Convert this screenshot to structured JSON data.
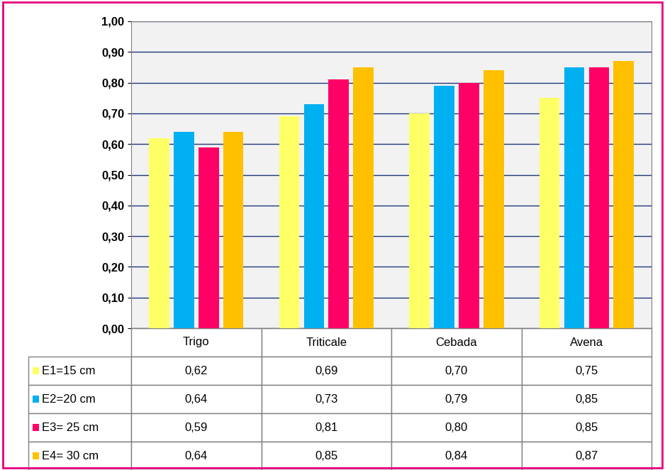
{
  "chart_data": {
    "type": "bar",
    "categories": [
      "Trigo",
      "Triticale",
      "Cebada",
      "Avena"
    ],
    "series": [
      {
        "name": "E1=15 cm",
        "color": "#FFFF66",
        "values": [
          0.62,
          0.69,
          0.7,
          0.75
        ],
        "value_labels": [
          "0,62",
          "0,69",
          "0,70",
          "0,75"
        ]
      },
      {
        "name": "E2=20 cm",
        "color": "#00B0F0",
        "values": [
          0.64,
          0.73,
          0.79,
          0.85
        ],
        "value_labels": [
          "0,64",
          "0,73",
          "0,79",
          "0,85"
        ]
      },
      {
        "name": "E3= 25 cm",
        "color": "#FF0066",
        "values": [
          0.59,
          0.81,
          0.8,
          0.85
        ],
        "value_labels": [
          "0,59",
          "0,81",
          "0,80",
          "0,85"
        ]
      },
      {
        "name": "E4= 30 cm",
        "color": "#FFC000",
        "values": [
          0.64,
          0.85,
          0.84,
          0.87
        ],
        "value_labels": [
          "0,64",
          "0,85",
          "0,84",
          "0,87"
        ]
      }
    ],
    "ylim": [
      0,
      1.0
    ],
    "yticks": [
      {
        "value": 0,
        "label": "0,00"
      },
      {
        "value": 0.1,
        "label": "0,10"
      },
      {
        "value": 0.2,
        "label": "0,20"
      },
      {
        "value": 0.3,
        "label": "0,30"
      },
      {
        "value": 0.4,
        "label": "0,40"
      },
      {
        "value": 0.5,
        "label": "0,50"
      },
      {
        "value": 0.6,
        "label": "0,60"
      },
      {
        "value": 0.7,
        "label": "0,70"
      },
      {
        "value": 0.8,
        "label": "0,80"
      },
      {
        "value": 0.9,
        "label": "0,90"
      },
      {
        "value": 1.0,
        "label": "1,00"
      }
    ],
    "grid": true
  }
}
